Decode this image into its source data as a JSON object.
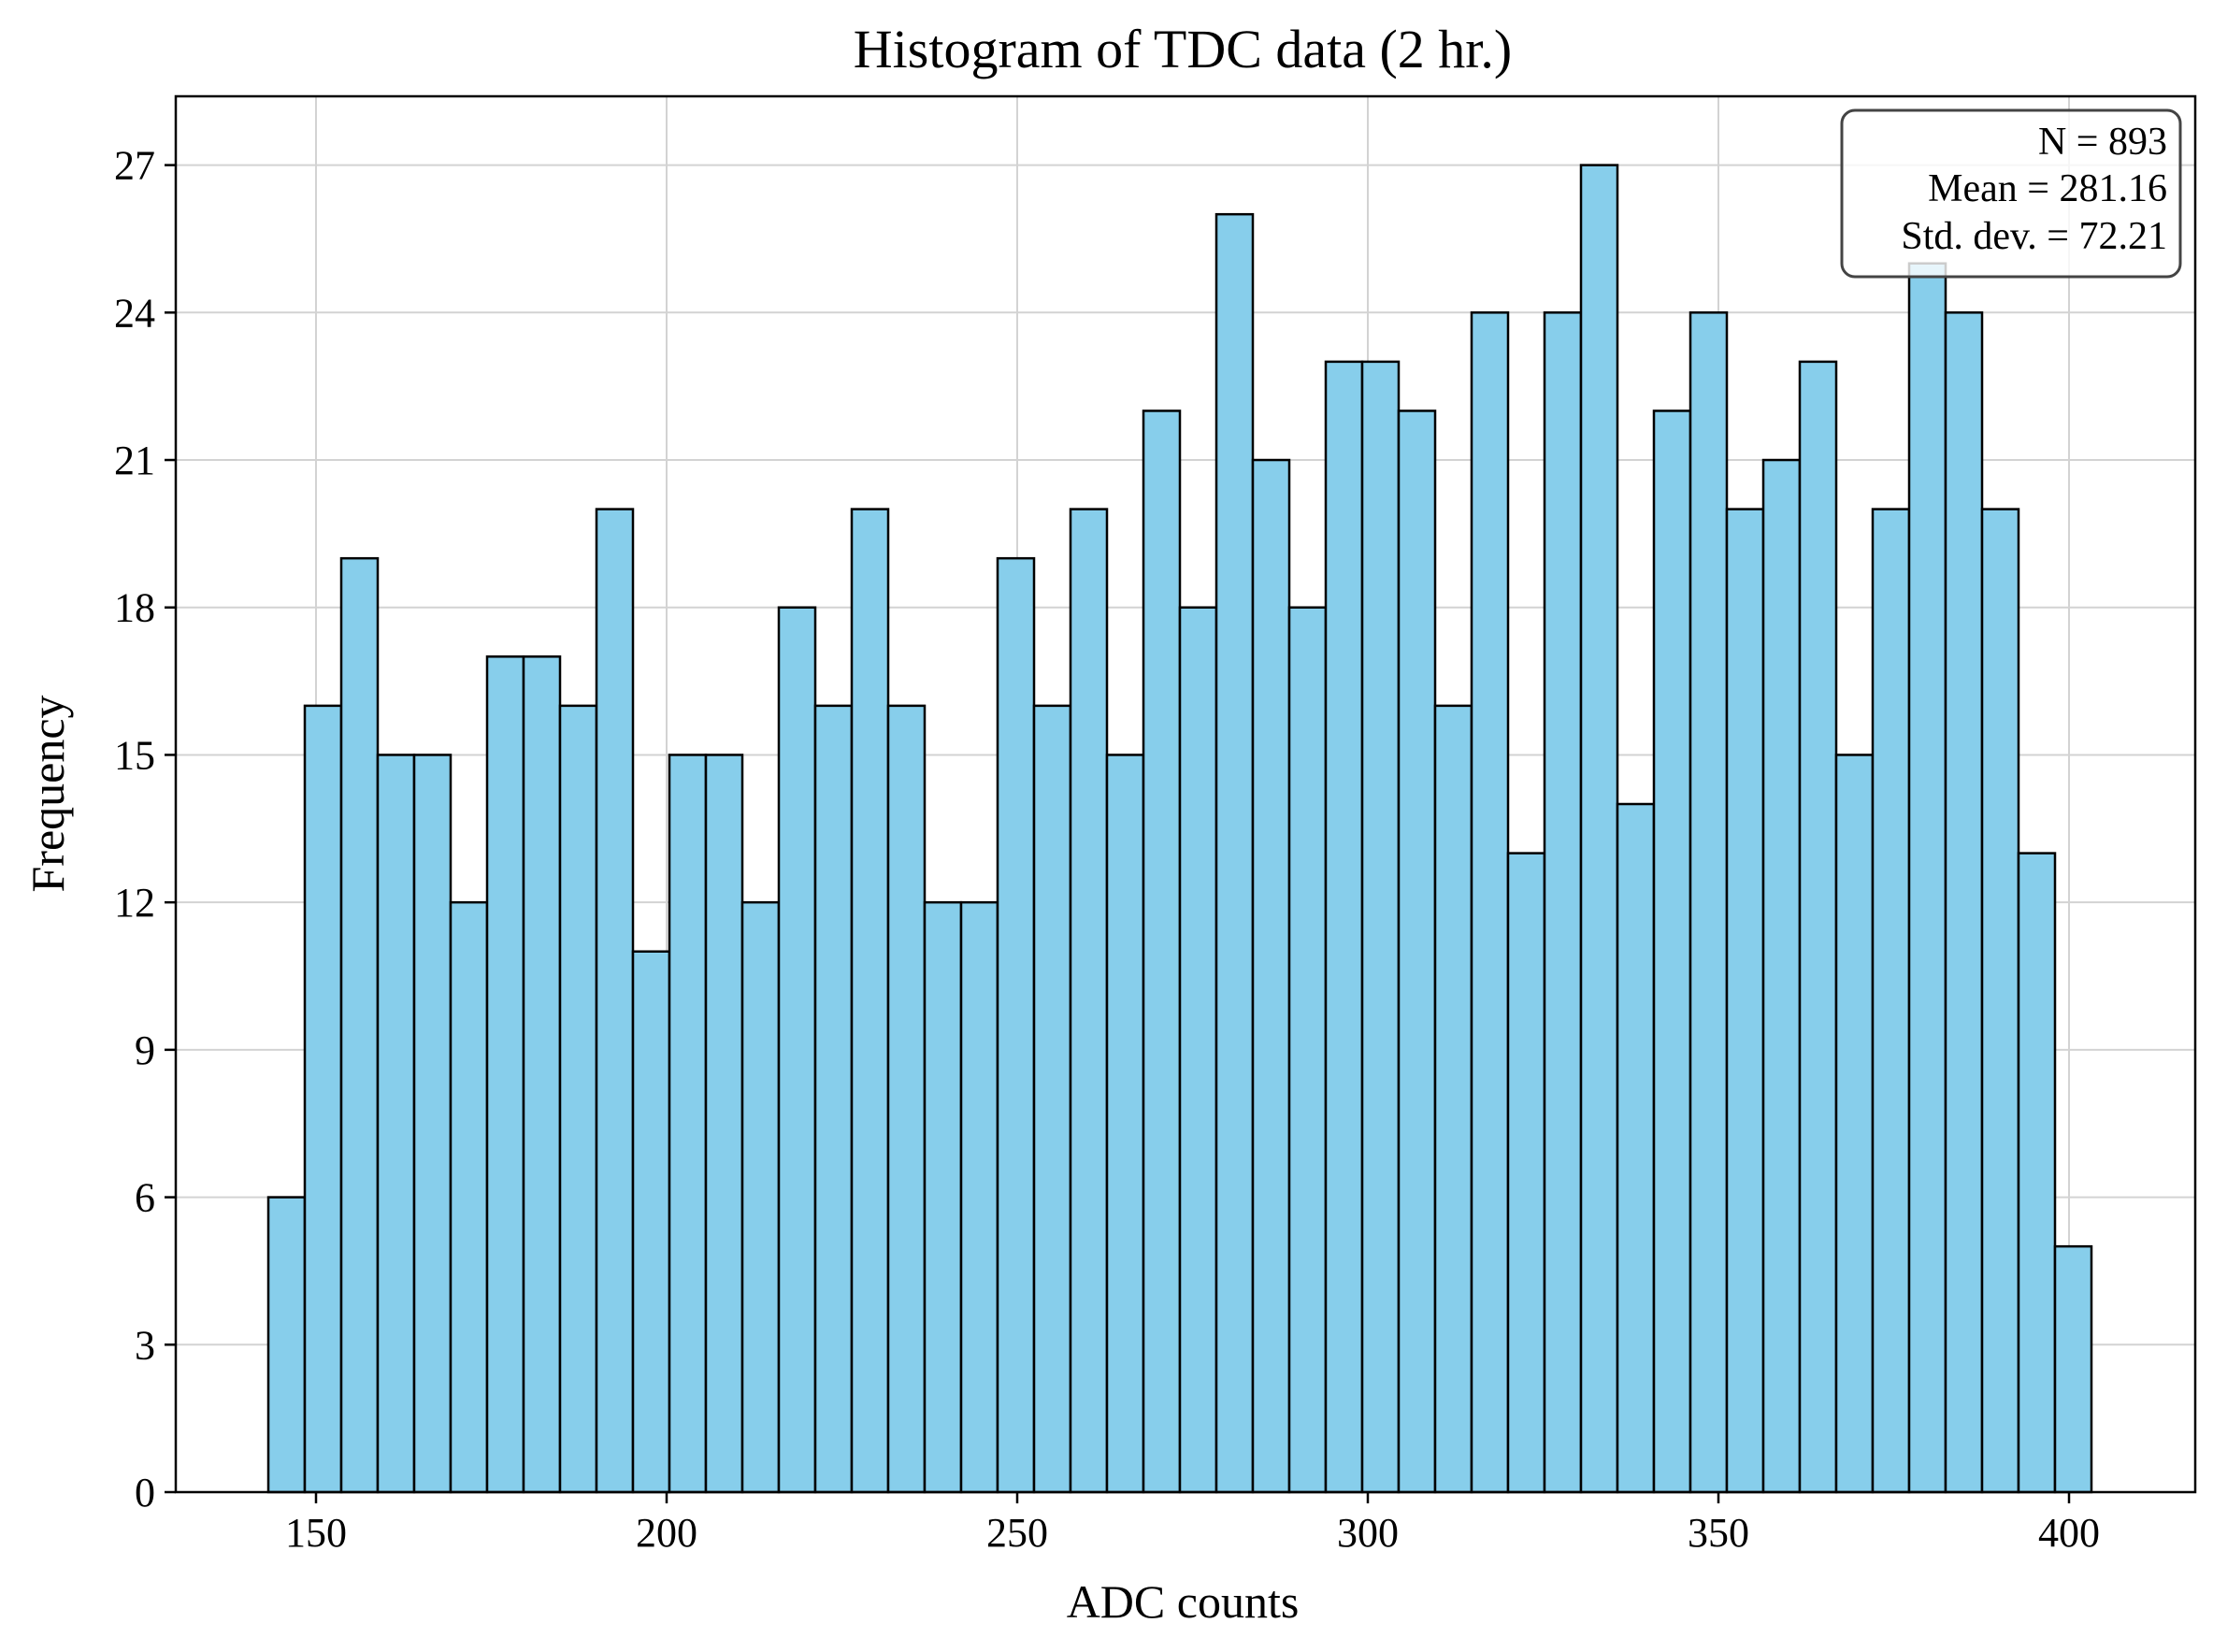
{
  "chart_data": {
    "type": "bar",
    "title": "Histogram of TDC data (2 hr.)",
    "xlabel": "ADC counts",
    "ylabel": "Frequency",
    "xlim": [
      130,
      418
    ],
    "ylim": [
      0,
      28.4
    ],
    "xticks": [
      150,
      200,
      250,
      300,
      350,
      400
    ],
    "yticks": [
      0,
      3,
      6,
      9,
      12,
      15,
      18,
      21,
      24,
      27
    ],
    "grid": true,
    "bin_start": 143.2,
    "bin_width": 5.2,
    "values": [
      6,
      16,
      19,
      15,
      15,
      12,
      17,
      17,
      16,
      20,
      11,
      15,
      15,
      12,
      18,
      16,
      20,
      16,
      12,
      12,
      19,
      16,
      20,
      15,
      22,
      18,
      26,
      21,
      18,
      23,
      23,
      22,
      16,
      24,
      13,
      24,
      27,
      14,
      22,
      24,
      20,
      21,
      23,
      15,
      20,
      25,
      24,
      20,
      13,
      5
    ],
    "bar_color": "#87ceeb",
    "edge_color": "#000000",
    "stats_box": {
      "placement": "top-right",
      "lines": [
        "N = 893",
        "Mean = 281.16",
        "Std. dev. = 72.21"
      ]
    }
  }
}
